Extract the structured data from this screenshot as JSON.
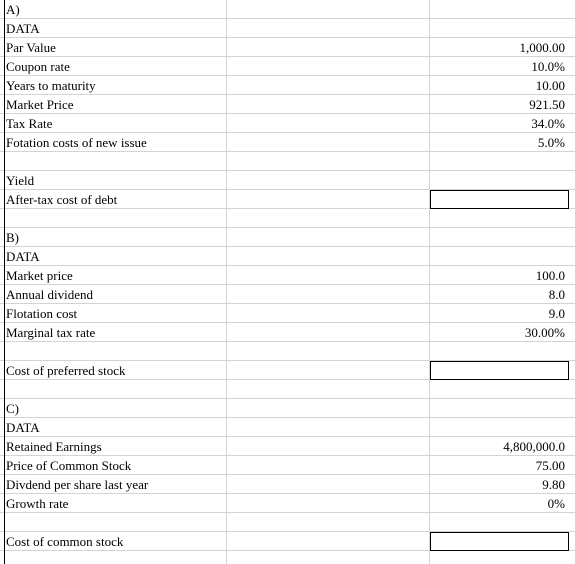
{
  "sectionA": {
    "header": "A)",
    "data_label": "DATA",
    "rows": [
      {
        "label": "Par Value",
        "value": "1,000.00"
      },
      {
        "label": "Coupon rate",
        "value": "10.0%"
      },
      {
        "label": "Years to maturity",
        "value": "10.00"
      },
      {
        "label": "Market Price",
        "value": "921.50"
      },
      {
        "label": "Tax Rate",
        "value": "34.0%"
      },
      {
        "label": "Fotation costs of new issue",
        "value": "5.0%"
      }
    ],
    "yield_label": "Yield",
    "result_label": "After-tax cost of debt"
  },
  "sectionB": {
    "header": "B)",
    "data_label": "DATA",
    "rows": [
      {
        "label": "Market price",
        "value": "100.0"
      },
      {
        "label": "Annual dividend",
        "value": "8.0"
      },
      {
        "label": "Flotation cost",
        "value": "9.0"
      },
      {
        "label": "Marginal tax rate",
        "value": "30.00%"
      }
    ],
    "result_label": "Cost of preferred stock"
  },
  "sectionC": {
    "header": "C)",
    "data_label": "DATA",
    "rows": [
      {
        "label": "Retained Earnings",
        "value": "4,800,000.0"
      },
      {
        "label": "Price of Common Stock",
        "value": "75.00"
      },
      {
        "label": "Divdend per share last year",
        "value": "9.80"
      },
      {
        "label": "Growth rate",
        "value": "0%"
      }
    ],
    "result_label": "Cost of common stock"
  }
}
